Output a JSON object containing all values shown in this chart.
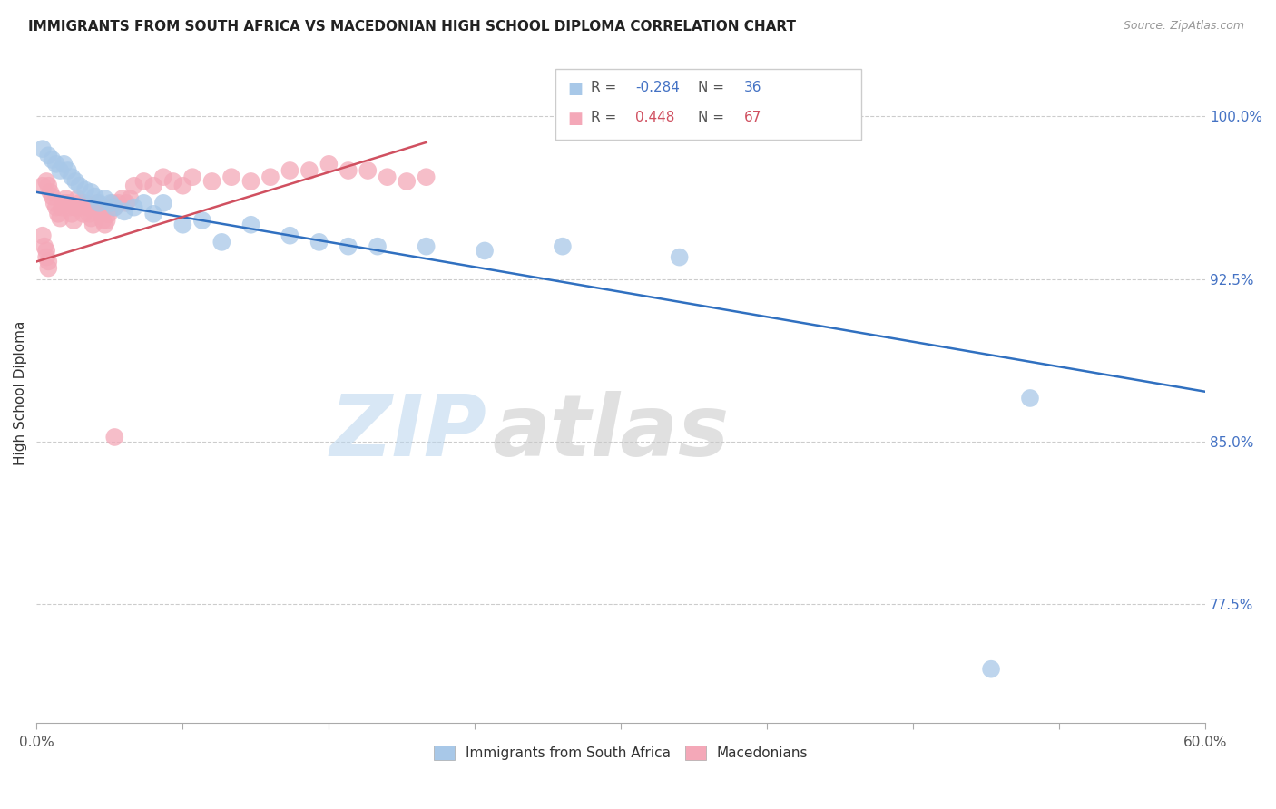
{
  "title": "IMMIGRANTS FROM SOUTH AFRICA VS MACEDONIAN HIGH SCHOOL DIPLOMA CORRELATION CHART",
  "source": "Source: ZipAtlas.com",
  "ylabel": "High School Diploma",
  "ytick_labels": [
    "100.0%",
    "92.5%",
    "85.0%",
    "77.5%"
  ],
  "ytick_values": [
    1.0,
    0.925,
    0.85,
    0.775
  ],
  "xlim": [
    0.0,
    0.6
  ],
  "ylim": [
    0.72,
    1.025
  ],
  "blue_color": "#a8c8e8",
  "pink_color": "#f4a8b8",
  "trend_blue_color": "#3070c0",
  "trend_pink_color": "#d05060",
  "watermark_zip": "ZIP",
  "watermark_atlas": "atlas",
  "blue_trend_x0": 0.0,
  "blue_trend_y0": 0.965,
  "blue_trend_x1": 0.6,
  "blue_trend_y1": 0.873,
  "pink_trend_x0": 0.0,
  "pink_trend_y0": 0.933,
  "pink_trend_x1": 0.2,
  "pink_trend_y1": 0.988,
  "blue_scatter_x": [
    0.003,
    0.006,
    0.008,
    0.01,
    0.012,
    0.014,
    0.016,
    0.018,
    0.02,
    0.022,
    0.025,
    0.028,
    0.03,
    0.032,
    0.035,
    0.038,
    0.04,
    0.045,
    0.05,
    0.055,
    0.06,
    0.065,
    0.075,
    0.085,
    0.095,
    0.11,
    0.13,
    0.145,
    0.16,
    0.175,
    0.2,
    0.23,
    0.27,
    0.33,
    0.49,
    0.51
  ],
  "blue_scatter_y": [
    0.985,
    0.982,
    0.98,
    0.978,
    0.975,
    0.978,
    0.975,
    0.972,
    0.97,
    0.968,
    0.966,
    0.965,
    0.963,
    0.96,
    0.962,
    0.96,
    0.958,
    0.956,
    0.958,
    0.96,
    0.955,
    0.96,
    0.95,
    0.952,
    0.942,
    0.95,
    0.945,
    0.942,
    0.94,
    0.94,
    0.94,
    0.938,
    0.94,
    0.935,
    0.745,
    0.87
  ],
  "pink_scatter_x": [
    0.003,
    0.005,
    0.006,
    0.007,
    0.008,
    0.009,
    0.01,
    0.011,
    0.012,
    0.013,
    0.014,
    0.015,
    0.016,
    0.017,
    0.018,
    0.019,
    0.02,
    0.021,
    0.022,
    0.023,
    0.024,
    0.025,
    0.026,
    0.027,
    0.028,
    0.029,
    0.03,
    0.031,
    0.032,
    0.033,
    0.034,
    0.035,
    0.036,
    0.037,
    0.038,
    0.039,
    0.04,
    0.042,
    0.044,
    0.046,
    0.048,
    0.05,
    0.055,
    0.06,
    0.065,
    0.07,
    0.075,
    0.08,
    0.09,
    0.1,
    0.11,
    0.12,
    0.13,
    0.14,
    0.15,
    0.16,
    0.17,
    0.18,
    0.19,
    0.2,
    0.003,
    0.004,
    0.005,
    0.005,
    0.006,
    0.006,
    0.04
  ],
  "pink_scatter_y": [
    0.968,
    0.97,
    0.968,
    0.965,
    0.963,
    0.96,
    0.958,
    0.955,
    0.953,
    0.958,
    0.96,
    0.962,
    0.96,
    0.958,
    0.955,
    0.952,
    0.958,
    0.962,
    0.96,
    0.958,
    0.955,
    0.96,
    0.958,
    0.955,
    0.953,
    0.95,
    0.958,
    0.96,
    0.958,
    0.955,
    0.952,
    0.95,
    0.952,
    0.955,
    0.958,
    0.96,
    0.958,
    0.96,
    0.962,
    0.96,
    0.962,
    0.968,
    0.97,
    0.968,
    0.972,
    0.97,
    0.968,
    0.972,
    0.97,
    0.972,
    0.97,
    0.972,
    0.975,
    0.975,
    0.978,
    0.975,
    0.975,
    0.972,
    0.97,
    0.972,
    0.945,
    0.94,
    0.938,
    0.935,
    0.933,
    0.93,
    0.852
  ]
}
